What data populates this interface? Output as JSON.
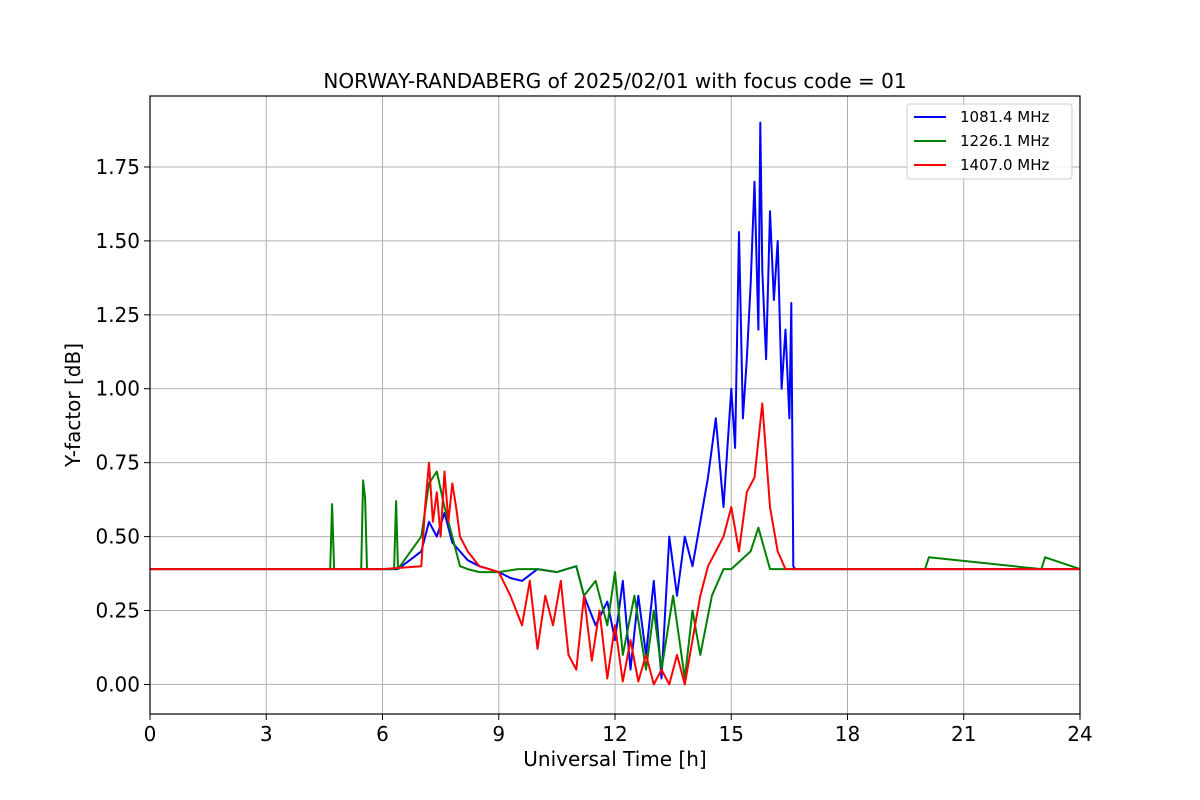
{
  "chart_data": {
    "type": "line",
    "title": "NORWAY-RANDABERG of 2025/02/01 with focus code = 01",
    "xlabel": "Universal Time [h]",
    "ylabel": "Y-factor [dB]",
    "xlim": [
      0,
      24
    ],
    "ylim": [
      -0.1,
      1.99
    ],
    "xticks": [
      0,
      3,
      6,
      9,
      12,
      15,
      18,
      21,
      24
    ],
    "xtick_labels": [
      "0",
      "3",
      "6",
      "9",
      "12",
      "15",
      "18",
      "21",
      "24"
    ],
    "yticks": [
      0.0,
      0.25,
      0.5,
      0.75,
      1.0,
      1.25,
      1.5,
      1.75
    ],
    "ytick_labels": [
      "0.00",
      "0.25",
      "0.50",
      "0.75",
      "1.00",
      "1.25",
      "1.50",
      "1.75"
    ],
    "grid": true,
    "legend_position": "upper right",
    "series": [
      {
        "name": "1081.4 MHz",
        "color": "#0000ff",
        "x": [
          0,
          4.6,
          4.7,
          4.75,
          5.5,
          5.6,
          6.2,
          6.4,
          7.0,
          7.2,
          7.4,
          7.6,
          7.8,
          8.0,
          8.2,
          8.5,
          9.0,
          9.3,
          9.6,
          10.0,
          10.5,
          11.0,
          11.2,
          11.5,
          11.8,
          12.0,
          12.2,
          12.4,
          12.6,
          12.8,
          13.0,
          13.2,
          13.4,
          13.6,
          13.8,
          14.0,
          14.2,
          14.4,
          14.6,
          14.8,
          15.0,
          15.1,
          15.2,
          15.3,
          15.4,
          15.5,
          15.6,
          15.7,
          15.75,
          15.8,
          15.9,
          16.0,
          16.1,
          16.2,
          16.3,
          16.4,
          16.5,
          16.55,
          16.6,
          16.65,
          17.0,
          18.0,
          20.0,
          24
        ],
        "y": [
          0.39,
          0.39,
          0.39,
          0.39,
          0.39,
          0.39,
          0.39,
          0.39,
          0.45,
          0.55,
          0.5,
          0.58,
          0.48,
          0.45,
          0.42,
          0.4,
          0.38,
          0.36,
          0.35,
          0.39,
          0.38,
          0.4,
          0.3,
          0.2,
          0.28,
          0.15,
          0.35,
          0.05,
          0.3,
          0.1,
          0.35,
          0.02,
          0.5,
          0.3,
          0.5,
          0.4,
          0.55,
          0.7,
          0.9,
          0.6,
          1.0,
          0.8,
          1.53,
          0.9,
          1.1,
          1.35,
          1.7,
          1.2,
          1.9,
          1.4,
          1.1,
          1.6,
          1.3,
          1.5,
          1.0,
          1.2,
          0.9,
          1.29,
          0.4,
          0.39,
          0.39,
          0.39,
          0.39,
          0.39
        ]
      },
      {
        "name": "1226.1 MHz",
        "color": "#008000",
        "x": [
          0,
          4.65,
          4.7,
          4.75,
          5.45,
          5.5,
          5.55,
          5.6,
          6.3,
          6.35,
          6.4,
          7.0,
          7.2,
          7.4,
          7.6,
          7.8,
          8.0,
          8.2,
          8.5,
          9.0,
          9.5,
          10.0,
          10.5,
          11.0,
          11.2,
          11.5,
          11.8,
          12.0,
          12.2,
          12.5,
          12.8,
          13.0,
          13.2,
          13.5,
          13.8,
          14.0,
          14.2,
          14.5,
          14.8,
          15.0,
          15.5,
          15.7,
          16.0,
          16.5,
          17.0,
          18.0,
          20.0,
          20.1,
          23.0,
          23.1,
          24
        ],
        "y": [
          0.39,
          0.39,
          0.61,
          0.39,
          0.39,
          0.69,
          0.63,
          0.39,
          0.39,
          0.62,
          0.39,
          0.5,
          0.68,
          0.72,
          0.6,
          0.5,
          0.4,
          0.39,
          0.38,
          0.38,
          0.39,
          0.39,
          0.38,
          0.4,
          0.3,
          0.35,
          0.2,
          0.38,
          0.1,
          0.3,
          0.05,
          0.25,
          0.05,
          0.3,
          0.02,
          0.25,
          0.1,
          0.3,
          0.39,
          0.39,
          0.45,
          0.53,
          0.39,
          0.39,
          0.39,
          0.39,
          0.39,
          0.43,
          0.39,
          0.43,
          0.39
        ]
      },
      {
        "name": "1407.0 MHz",
        "color": "#ff0000",
        "x": [
          0,
          6.0,
          7.0,
          7.1,
          7.2,
          7.3,
          7.4,
          7.5,
          7.6,
          7.7,
          7.8,
          7.9,
          8.0,
          8.2,
          8.5,
          9.0,
          9.3,
          9.6,
          9.8,
          10.0,
          10.2,
          10.4,
          10.6,
          10.8,
          11.0,
          11.2,
          11.4,
          11.6,
          11.8,
          12.0,
          12.2,
          12.4,
          12.6,
          12.8,
          13.0,
          13.2,
          13.4,
          13.6,
          13.8,
          14.0,
          14.2,
          14.4,
          14.6,
          14.8,
          15.0,
          15.2,
          15.4,
          15.6,
          15.8,
          16.0,
          16.2,
          16.4,
          16.6,
          17.0,
          24
        ],
        "y": [
          0.39,
          0.39,
          0.4,
          0.6,
          0.75,
          0.55,
          0.65,
          0.5,
          0.72,
          0.55,
          0.68,
          0.6,
          0.5,
          0.45,
          0.4,
          0.38,
          0.3,
          0.2,
          0.35,
          0.12,
          0.3,
          0.2,
          0.35,
          0.1,
          0.05,
          0.3,
          0.08,
          0.25,
          0.02,
          0.2,
          0.01,
          0.15,
          0.01,
          0.1,
          0.0,
          0.05,
          0.0,
          0.1,
          0.0,
          0.15,
          0.3,
          0.4,
          0.45,
          0.5,
          0.6,
          0.45,
          0.65,
          0.7,
          0.95,
          0.6,
          0.45,
          0.39,
          0.39,
          0.39,
          0.39
        ]
      }
    ]
  }
}
